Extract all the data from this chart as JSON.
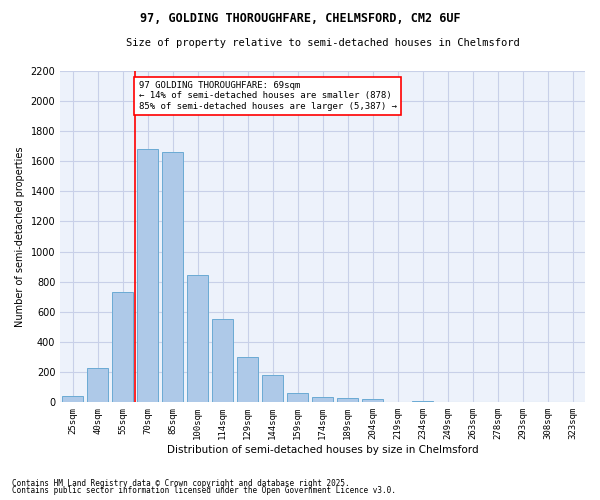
{
  "title": "97, GOLDING THOROUGHFARE, CHELMSFORD, CM2 6UF",
  "subtitle": "Size of property relative to semi-detached houses in Chelmsford",
  "xlabel": "Distribution of semi-detached houses by size in Chelmsford",
  "ylabel": "Number of semi-detached properties",
  "categories": [
    "25sqm",
    "40sqm",
    "55sqm",
    "70sqm",
    "85sqm",
    "100sqm",
    "114sqm",
    "129sqm",
    "144sqm",
    "159sqm",
    "174sqm",
    "189sqm",
    "204sqm",
    "219sqm",
    "234sqm",
    "249sqm",
    "263sqm",
    "278sqm",
    "293sqm",
    "308sqm",
    "323sqm"
  ],
  "values": [
    45,
    225,
    730,
    1680,
    1660,
    845,
    555,
    300,
    180,
    65,
    38,
    30,
    20,
    0,
    10,
    0,
    0,
    0,
    0,
    0,
    0
  ],
  "bar_color": "#aec9e8",
  "bar_edge_color": "#6aaad4",
  "annotation_label": "97 GOLDING THOROUGHFARE: 69sqm\n← 14% of semi-detached houses are smaller (878)\n85% of semi-detached houses are larger (5,387) →",
  "vline_color": "red",
  "ylim": [
    0,
    2200
  ],
  "yticks": [
    0,
    200,
    400,
    600,
    800,
    1000,
    1200,
    1400,
    1600,
    1800,
    2000,
    2200
  ],
  "footer1": "Contains HM Land Registry data © Crown copyright and database right 2025.",
  "footer2": "Contains public sector information licensed under the Open Government Licence v3.0.",
  "bg_color": "#edf2fb",
  "grid_color": "#c8d0e8"
}
